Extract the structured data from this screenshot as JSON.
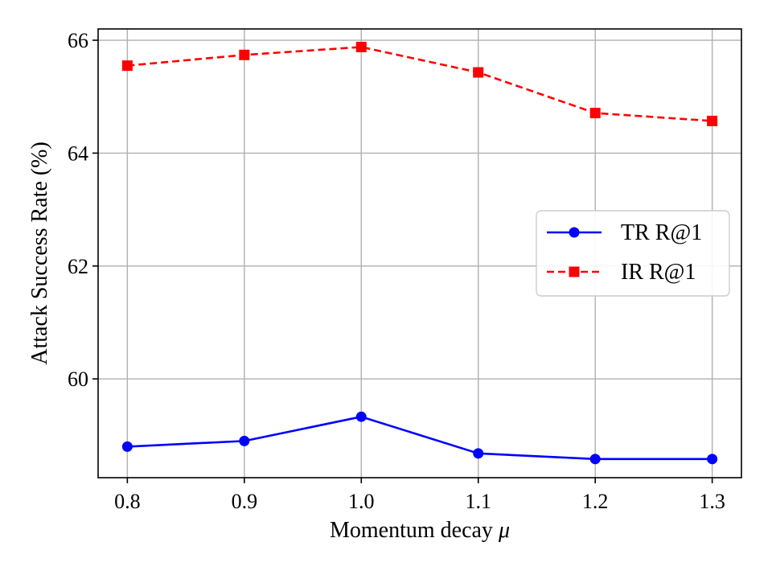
{
  "chart_data": {
    "type": "line",
    "x": [
      0.8,
      0.9,
      1.0,
      1.1,
      1.2,
      1.3
    ],
    "series": [
      {
        "name": "TR R@1",
        "values": [
          58.8,
          58.9,
          59.33,
          58.68,
          58.58,
          58.58
        ],
        "color": "#0000ff",
        "linestyle": "solid",
        "marker": "circle"
      },
      {
        "name": "IR R@1",
        "values": [
          65.55,
          65.74,
          65.88,
          65.43,
          64.71,
          64.57
        ],
        "color": "#ff0000",
        "linestyle": "dashed",
        "marker": "square"
      }
    ],
    "xlabel": "Momentum decay",
    "xlabel_symbol": "μ",
    "ylabel": "Attack Success Rate (%)",
    "xlim": [
      0.775,
      1.325
    ],
    "ylim": [
      58.25,
      66.2
    ],
    "xticks": [
      0.8,
      0.9,
      1.0,
      1.1,
      1.2,
      1.3
    ],
    "xtick_labels": [
      "0.8",
      "0.9",
      "1.0",
      "1.1",
      "1.2",
      "1.3"
    ],
    "yticks": [
      60,
      62,
      64,
      66
    ],
    "ytick_labels": [
      "60",
      "62",
      "64",
      "66"
    ],
    "grid": true,
    "legend_position": "center-right"
  }
}
